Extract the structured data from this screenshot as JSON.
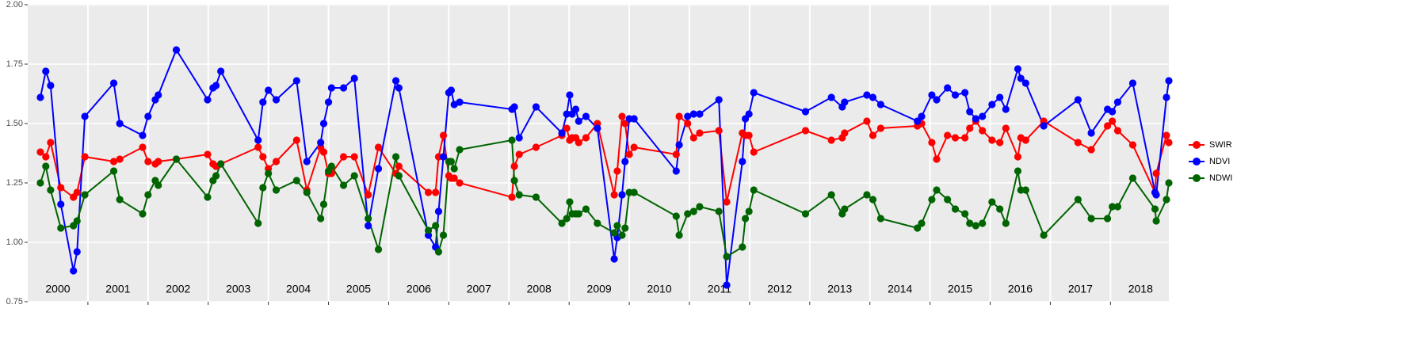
{
  "chart_data": {
    "type": "line",
    "x": [
      2000.21,
      2000.3,
      2000.38,
      2000.55,
      2000.76,
      2000.82,
      2000.95,
      2001.43,
      2001.53,
      2001.91,
      2002.0,
      2002.12,
      2002.17,
      2002.47,
      2002.99,
      2003.08,
      2003.13,
      2003.21,
      2003.83,
      2003.91,
      2004.0,
      2004.13,
      2004.47,
      2004.64,
      2004.87,
      2004.92,
      2005.0,
      2005.05,
      2005.25,
      2005.43,
      2005.66,
      2005.83,
      2006.12,
      2006.17,
      2006.66,
      2006.78,
      2006.83,
      2006.91,
      2007.0,
      2007.04,
      2007.09,
      2007.18,
      2008.05,
      2008.09,
      2008.17,
      2008.45,
      2008.88,
      2008.96,
      2009.01,
      2009.05,
      2009.11,
      2009.16,
      2009.28,
      2009.47,
      2009.75,
      2009.8,
      2009.88,
      2009.93,
      2010.0,
      2010.08,
      2010.78,
      2010.83,
      2010.97,
      2011.07,
      2011.17,
      2011.49,
      2011.62,
      2011.88,
      2011.93,
      2011.99,
      2012.07,
      2012.93,
      2013.36,
      2013.54,
      2013.58,
      2013.95,
      2014.05,
      2014.18,
      2014.79,
      2014.86,
      2015.03,
      2015.11,
      2015.29,
      2015.42,
      2015.58,
      2015.66,
      2015.76,
      2015.87,
      2016.03,
      2016.16,
      2016.26,
      2016.46,
      2016.51,
      2016.59,
      2016.89,
      2017.46,
      2017.68,
      2017.95,
      2018.03,
      2018.12,
      2018.37,
      2018.74,
      2018.76,
      2018.93,
      2018.97
    ],
    "series": [
      {
        "name": "SWIR",
        "color": "#ff0000",
        "values": [
          1.38,
          1.36,
          1.42,
          1.23,
          1.19,
          1.21,
          1.36,
          1.34,
          1.35,
          1.4,
          1.34,
          1.33,
          1.34,
          1.35,
          1.37,
          1.33,
          1.32,
          1.33,
          1.4,
          1.36,
          1.31,
          1.34,
          1.43,
          1.22,
          1.4,
          1.38,
          1.29,
          1.29,
          1.36,
          1.36,
          1.2,
          1.4,
          1.29,
          1.32,
          1.21,
          1.21,
          1.36,
          1.45,
          1.28,
          1.27,
          1.27,
          1.25,
          1.19,
          1.32,
          1.37,
          1.4,
          1.45,
          1.48,
          1.43,
          1.44,
          1.44,
          1.42,
          1.44,
          1.5,
          1.2,
          1.3,
          1.53,
          1.5,
          1.37,
          1.4,
          1.37,
          1.53,
          1.5,
          1.44,
          1.46,
          1.47,
          1.17,
          1.46,
          1.45,
          1.45,
          1.38,
          1.47,
          1.43,
          1.44,
          1.46,
          1.51,
          1.45,
          1.48,
          1.49,
          1.5,
          1.42,
          1.35,
          1.45,
          1.44,
          1.44,
          1.48,
          1.51,
          1.47,
          1.43,
          1.42,
          1.48,
          1.36,
          1.44,
          1.43,
          1.51,
          1.42,
          1.39,
          1.49,
          1.51,
          1.47,
          1.41,
          1.21,
          1.29,
          1.45,
          1.42
        ]
      },
      {
        "name": "NDVI",
        "color": "#0000ff",
        "values": [
          1.61,
          1.72,
          1.66,
          1.16,
          0.88,
          0.96,
          1.53,
          1.67,
          1.5,
          1.45,
          1.53,
          1.6,
          1.62,
          1.81,
          1.6,
          1.65,
          1.66,
          1.72,
          1.43,
          1.59,
          1.64,
          1.6,
          1.68,
          1.34,
          1.42,
          1.5,
          1.59,
          1.65,
          1.65,
          1.69,
          1.07,
          1.31,
          1.68,
          1.65,
          1.03,
          0.98,
          1.13,
          1.36,
          1.63,
          1.64,
          1.58,
          1.59,
          1.56,
          1.57,
          1.44,
          1.57,
          1.46,
          1.54,
          1.62,
          1.54,
          1.56,
          1.51,
          1.53,
          1.48,
          0.93,
          1.02,
          1.2,
          1.34,
          1.52,
          1.52,
          1.3,
          1.41,
          1.53,
          1.54,
          1.54,
          1.6,
          0.82,
          1.34,
          1.52,
          1.54,
          1.63,
          1.55,
          1.61,
          1.57,
          1.59,
          1.62,
          1.61,
          1.58,
          1.51,
          1.53,
          1.62,
          1.6,
          1.65,
          1.62,
          1.63,
          1.55,
          1.52,
          1.53,
          1.58,
          1.61,
          1.56,
          1.73,
          1.69,
          1.67,
          1.49,
          1.6,
          1.46,
          1.56,
          1.55,
          1.59,
          1.67,
          1.21,
          1.2,
          1.61,
          1.68
        ]
      },
      {
        "name": "NDWI",
        "color": "#006400",
        "values": [
          1.25,
          1.32,
          1.22,
          1.06,
          1.07,
          1.09,
          1.2,
          1.3,
          1.18,
          1.12,
          1.2,
          1.26,
          1.24,
          1.35,
          1.19,
          1.26,
          1.28,
          1.33,
          1.08,
          1.23,
          1.29,
          1.22,
          1.26,
          1.21,
          1.1,
          1.16,
          1.3,
          1.32,
          1.24,
          1.28,
          1.1,
          0.97,
          1.36,
          1.28,
          1.05,
          1.07,
          0.96,
          1.03,
          1.34,
          1.34,
          1.31,
          1.39,
          1.43,
          1.26,
          1.2,
          1.19,
          1.08,
          1.1,
          1.17,
          1.12,
          1.12,
          1.12,
          1.14,
          1.08,
          1.04,
          1.07,
          1.03,
          1.06,
          1.21,
          1.21,
          1.11,
          1.03,
          1.12,
          1.13,
          1.15,
          1.13,
          0.94,
          0.98,
          1.1,
          1.13,
          1.22,
          1.12,
          1.2,
          1.12,
          1.14,
          1.2,
          1.18,
          1.1,
          1.06,
          1.08,
          1.18,
          1.22,
          1.18,
          1.14,
          1.12,
          1.08,
          1.07,
          1.08,
          1.17,
          1.14,
          1.08,
          1.3,
          1.22,
          1.22,
          1.03,
          1.18,
          1.1,
          1.1,
          1.15,
          1.15,
          1.27,
          1.14,
          1.09,
          1.18,
          1.25
        ]
      }
    ],
    "xlim": [
      2000,
      2018.97
    ],
    "xticks": [
      2001,
      2002,
      2003,
      2004,
      2005,
      2006,
      2007,
      2008,
      2009,
      2010,
      2011,
      2012,
      2013,
      2014,
      2015,
      2016,
      2017,
      2018
    ],
    "ylim": [
      0.75,
      2.0
    ],
    "yticks": [
      {
        "value": 0.75,
        "label": "0.75"
      },
      {
        "value": 1.0,
        "label": "1.00"
      },
      {
        "value": 1.25,
        "label": "1.25"
      },
      {
        "value": 1.5,
        "label": "1.50"
      },
      {
        "value": 1.75,
        "label": "1.75"
      },
      {
        "value": 2.0,
        "label": "2.00"
      }
    ],
    "grid": true,
    "legend": "right",
    "annotations": [
      {
        "text": "2000",
        "x": 2000.5
      },
      {
        "text": "2001",
        "x": 2001.5
      },
      {
        "text": "2002",
        "x": 2002.5
      },
      {
        "text": "2003",
        "x": 2003.5
      },
      {
        "text": "2004",
        "x": 2004.5
      },
      {
        "text": "2005",
        "x": 2005.5
      },
      {
        "text": "2006",
        "x": 2006.5
      },
      {
        "text": "2007",
        "x": 2007.5
      },
      {
        "text": "2008",
        "x": 2008.5
      },
      {
        "text": "2009",
        "x": 2009.5
      },
      {
        "text": "2010",
        "x": 2010.5
      },
      {
        "text": "2011",
        "x": 2011.5
      },
      {
        "text": "2012",
        "x": 2012.5
      },
      {
        "text": "2013",
        "x": 2013.5
      },
      {
        "text": "2014",
        "x": 2014.5
      },
      {
        "text": "2015",
        "x": 2015.5
      },
      {
        "text": "2016",
        "x": 2016.5
      },
      {
        "text": "2017",
        "x": 2017.5
      },
      {
        "text": "2018",
        "x": 2018.5
      }
    ]
  }
}
